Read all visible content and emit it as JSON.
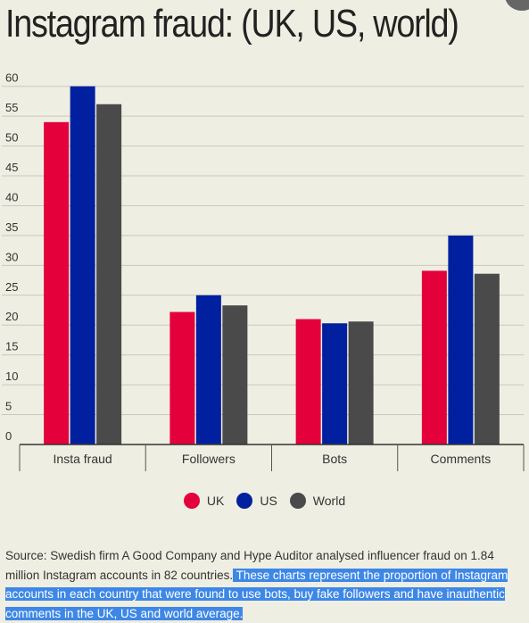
{
  "title": "Instagram fraud: (UK, US, world)",
  "chart_data": {
    "type": "bar",
    "title": "Instagram fraud: (UK, US, world)",
    "categories": [
      "Insta fraud",
      "Followers",
      "Bots",
      "Comments"
    ],
    "series": [
      {
        "name": "UK",
        "values": [
          54,
          22.2,
          21,
          29.1
        ]
      },
      {
        "name": "US",
        "values": [
          60,
          25,
          20.3,
          35
        ]
      },
      {
        "name": "World",
        "values": [
          57,
          23.3,
          20.6,
          28.6
        ]
      }
    ],
    "y_ticks": [
      0,
      5,
      10,
      15,
      20,
      25,
      30,
      35,
      40,
      45,
      50,
      55,
      60
    ],
    "ylim": [
      0,
      61
    ],
    "grid": true,
    "legend_position": "bottom-center"
  },
  "colors": {
    "UK": "#e4003b",
    "US": "#00209f",
    "World": "#4a4a4a",
    "background": "#efeee2",
    "grid": "#c9c8bc",
    "highlight": "#3d87e6"
  },
  "legend": [
    {
      "label": "UK"
    },
    {
      "label": "US"
    },
    {
      "label": "World"
    }
  ],
  "source": {
    "plain": "Source: Swedish firm A Good Company and Hype Auditor analysed influencer fraud on 1.84 million Instagram accounts in 82 countries.",
    "highlighted": " These charts represent the proportion of Instagram accounts in each country that were found to use bots, buy fake followers and have inauthentic comments in the UK, US and world average."
  }
}
